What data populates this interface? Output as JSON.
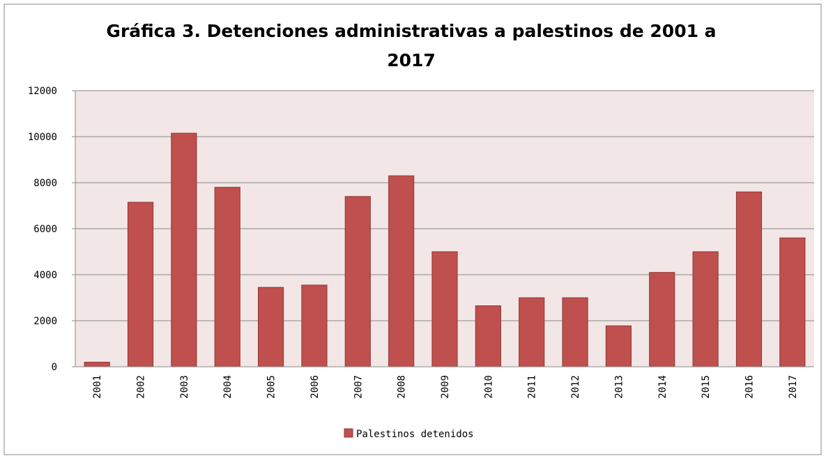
{
  "chart_data": {
    "type": "bar",
    "title": "Gráfica 3. Detenciones administrativas a palestinos de 2001 a 2017",
    "categories": [
      "2001",
      "2002",
      "2003",
      "2004",
      "2005",
      "2006",
      "2007",
      "2008",
      "2009",
      "2010",
      "2011",
      "2012",
      "2013",
      "2014",
      "2015",
      "2016",
      "2017"
    ],
    "series": [
      {
        "name": "Palestinos detenidos",
        "color": "#c0504d",
        "values": [
          200,
          7150,
          10150,
          7800,
          3450,
          3550,
          7400,
          8300,
          5000,
          2650,
          3000,
          3000,
          1780,
          4100,
          5000,
          7600,
          5600
        ]
      }
    ],
    "ylim": [
      0,
      12000
    ],
    "yticks": [
      0,
      2000,
      4000,
      6000,
      8000,
      10000,
      12000
    ],
    "grid": true,
    "legend": "bottom"
  }
}
